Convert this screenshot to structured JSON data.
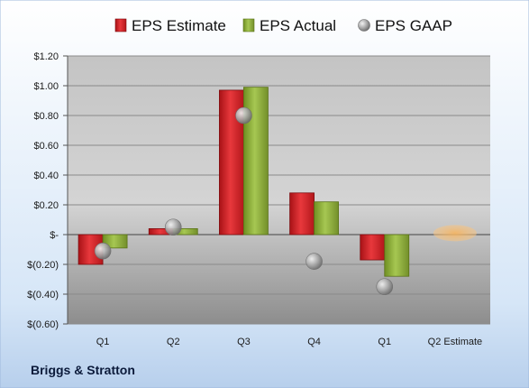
{
  "company": "Briggs & Stratton",
  "chart_data": {
    "type": "bar",
    "categories": [
      "Q1",
      "Q2",
      "Q3",
      "Q4",
      "Q1",
      "Q2 Estimate"
    ],
    "series": [
      {
        "name": "EPS Estimate",
        "color": "#d8262b",
        "values": [
          -0.2,
          0.04,
          0.97,
          0.28,
          -0.17,
          0.01
        ]
      },
      {
        "name": "EPS Actual",
        "color": "#8fb23c",
        "values": [
          -0.09,
          0.04,
          0.99,
          0.22,
          -0.28,
          null
        ]
      },
      {
        "name": "EPS GAAP",
        "color": "#a9a9a9",
        "kind": "marker",
        "values": [
          -0.11,
          0.05,
          0.8,
          -0.18,
          -0.35,
          null
        ]
      }
    ],
    "estimate_marker_color": "#f4a54a",
    "ylim": [
      -0.6,
      1.2
    ],
    "yticks": [
      1.2,
      1.0,
      0.8,
      0.6,
      0.4,
      0.2,
      0,
      -0.2,
      -0.4,
      -0.6
    ],
    "ytick_labels": [
      "$1.20",
      "$1.00",
      "$0.80",
      "$0.60",
      "$0.40",
      "$0.20",
      "$-",
      "$(0.20)",
      "$(0.40)",
      "$(0.60)"
    ],
    "grid": true,
    "legend": "top"
  }
}
